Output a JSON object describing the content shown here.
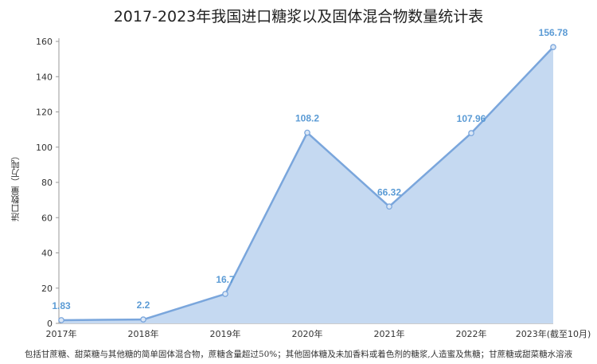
{
  "chart_data": {
    "type": "area",
    "title": "2017-2023年我国进口糖浆以及固体混合物数量统计表",
    "xlabel": "",
    "ylabel": "进口数量（万吨）",
    "categories": [
      "2017年",
      "2018年",
      "2019年",
      "2020年",
      "2021年",
      "2022年",
      "2023年(截至10月)"
    ],
    "series": [
      {
        "values": [
          1.83,
          2.2,
          16.7,
          108.2,
          66.32,
          107.96,
          156.78
        ]
      }
    ],
    "data_labels": [
      "1.83",
      "2.2",
      "16.7",
      "108.2",
      "66.32",
      "107.96",
      "156.78"
    ],
    "ylim": [
      0,
      160
    ],
    "yticks": [
      0,
      20,
      40,
      60,
      80,
      100,
      120,
      140,
      160
    ],
    "grid": false,
    "colors": {
      "line": "#7aa6dc",
      "fill": "#c5d9f1",
      "label": "#5b9bd5"
    },
    "footnote": "包括甘蔗糖、甜菜糖与其他糖的简单固体混合物，蔗糖含量超过50%；其他固体糖及未加香料或着色剂的糖浆,人造蜜及焦糖；甘蔗糖或甜菜糖水溶液"
  }
}
